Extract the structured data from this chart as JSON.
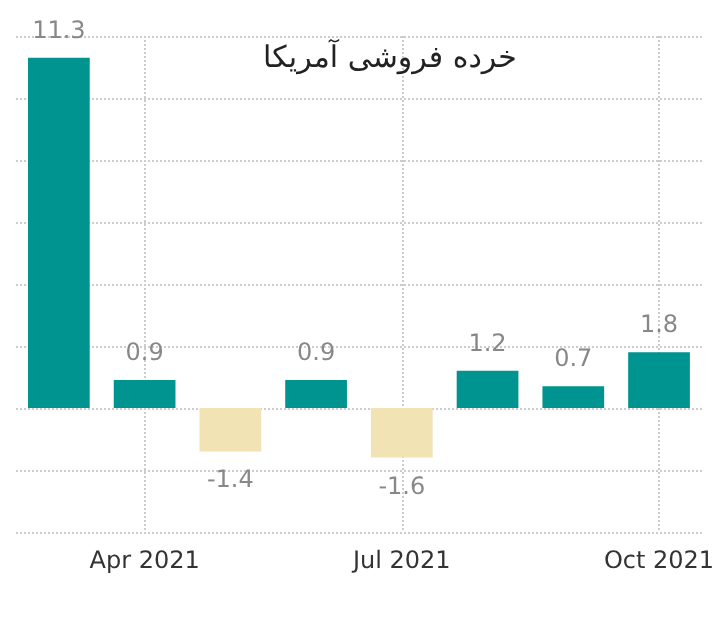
{
  "chart_data": {
    "type": "bar",
    "title": "خرده فروشی آمریکا",
    "categories": [
      null,
      "Apr 2021",
      null,
      null,
      "Jul 2021",
      null,
      null,
      "Oct 2021"
    ],
    "values": [
      11.3,
      0.9,
      -1.4,
      0.9,
      -1.6,
      1.2,
      0.7,
      1.8
    ],
    "colors": [
      "#009490",
      "#009490",
      "#f2e3b5",
      "#009490",
      "#f2e3b5",
      "#009490",
      "#009490",
      "#009490"
    ],
    "ylim": [
      -4,
      12
    ],
    "yticks": [
      {
        "value": -4,
        "label": null
      },
      {
        "value": -2,
        "label": null
      },
      {
        "value": 0,
        "label": null
      },
      {
        "value": 2,
        "label": null
      },
      {
        "value": 4,
        "label": null
      },
      {
        "value": 6,
        "label": null
      },
      {
        "value": 8,
        "label": null
      },
      {
        "value": 10,
        "label": null
      },
      {
        "value": 12,
        "label": null
      }
    ],
    "tick_labels": "x",
    "data_labels": true,
    "grid": true
  }
}
